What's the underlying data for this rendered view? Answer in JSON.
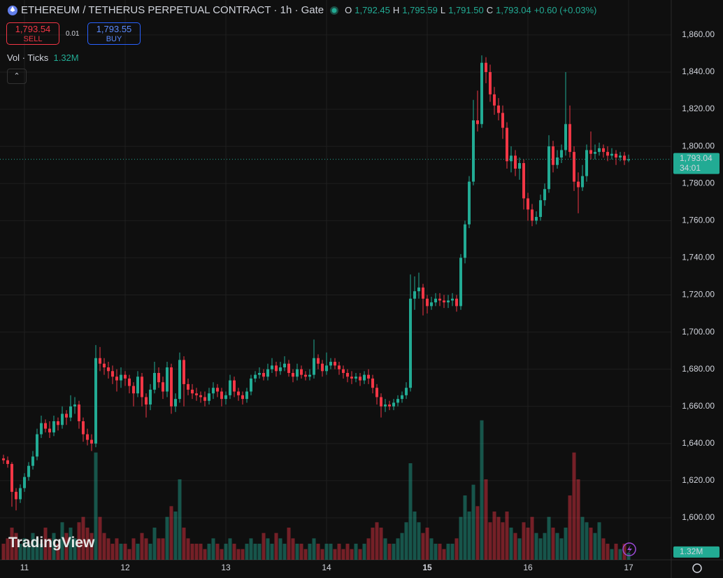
{
  "header": {
    "title": "ETHEREUM / TETHERUS PERPETUAL CONTRACT · 1h · Gate",
    "o_key": "O",
    "o_val": "1,792.45",
    "h_key": "H",
    "h_val": "1,795.59",
    "l_key": "L",
    "l_val": "1,791.50",
    "c_key": "C",
    "c_val": "1,793.04",
    "change": "+0.60 (+0.03%)",
    "sell_price": "1,793.54",
    "sell": "SELL",
    "spread": "0.01",
    "buy_price": "1,793.55",
    "buy": "BUY",
    "vol_title": "Vol · Ticks",
    "vol_value": "1.32M",
    "watermark": "TradingView"
  },
  "chart_data": {
    "type": "candlestick",
    "categories": [
      null,
      null,
      null,
      null,
      null,
      "11",
      null,
      null,
      null,
      null,
      null,
      null,
      null,
      null,
      null,
      null,
      null,
      null,
      null,
      null,
      null,
      null,
      null,
      null,
      null,
      null,
      null,
      null,
      null,
      "12",
      null,
      null,
      null,
      null,
      null,
      null,
      null,
      null,
      null,
      null,
      null,
      null,
      null,
      null,
      null,
      null,
      null,
      null,
      null,
      null,
      null,
      null,
      null,
      "13",
      null,
      null,
      null,
      null,
      null,
      null,
      null,
      null,
      null,
      null,
      null,
      null,
      null,
      null,
      null,
      null,
      null,
      null,
      null,
      null,
      null,
      null,
      null,
      "14",
      null,
      null,
      null,
      null,
      null,
      null,
      null,
      null,
      null,
      null,
      null,
      null,
      null,
      null,
      null,
      null,
      null,
      null,
      null,
      null,
      null,
      null,
      null,
      "15",
      null,
      null,
      null,
      null,
      null,
      null,
      null,
      null,
      null,
      null,
      null,
      null,
      null,
      null,
      null,
      null,
      null,
      null,
      null,
      null,
      null,
      null,
      null,
      "16",
      null,
      null,
      null,
      null,
      null,
      null,
      null,
      null,
      null,
      null,
      null,
      null,
      null,
      null,
      null,
      null,
      null,
      null,
      null,
      null,
      null,
      null,
      null,
      "17"
    ],
    "open": [
      1632,
      1631,
      1629,
      1614,
      1610,
      1616,
      1622,
      1628,
      1633,
      1645,
      1651,
      1648,
      1646,
      1652,
      1650,
      1656,
      1654,
      1660,
      1661,
      1652,
      1645,
      1642,
      1640,
      1686,
      1683,
      1681,
      1679,
      1676,
      1674,
      1677,
      1675,
      1671,
      1667,
      1676,
      1665,
      1661,
      1669,
      1678,
      1673,
      1668,
      1681,
      1660,
      1664,
      1685,
      1672,
      1669,
      1667,
      1666,
      1665,
      1663,
      1667,
      1670,
      1668,
      1664,
      1666,
      1674,
      1668,
      1666,
      1664,
      1668,
      1675,
      1677,
      1678,
      1676,
      1680,
      1682,
      1679,
      1681,
      1683,
      1678,
      1676,
      1680,
      1677,
      1676,
      1677,
      1686,
      1683,
      1679,
      1682,
      1684,
      1682,
      1680,
      1678,
      1676,
      1675,
      1676,
      1674,
      1677,
      1675,
      1670,
      1665,
      1660,
      1661,
      1660,
      1662,
      1664,
      1666,
      1670,
      1718,
      1722,
      1724,
      1718,
      1714,
      1716,
      1718,
      1717,
      1716,
      1717,
      1718,
      1714,
      1740,
      1758,
      1781,
      1814,
      1812,
      1845,
      1840,
      1828,
      1822,
      1818,
      1810,
      1792,
      1795,
      1788,
      1791,
      1772,
      1766,
      1760,
      1762,
      1771,
      1777,
      1800,
      1790,
      1794,
      1798,
      1812,
      1797,
      1781,
      1778,
      1784,
      1798,
      1796,
      1797,
      1799,
      1797,
      1795,
      1796,
      1794,
      1795,
      1792.45
    ],
    "high": [
      1634,
      1633,
      1630,
      1616,
      1618,
      1624,
      1630,
      1636,
      1648,
      1655,
      1653,
      1652,
      1655,
      1654,
      1660,
      1658,
      1666,
      1665,
      1663,
      1654,
      1648,
      1645,
      1693,
      1692,
      1686,
      1684,
      1682,
      1680,
      1681,
      1679,
      1677,
      1673,
      1679,
      1678,
      1667,
      1672,
      1684,
      1681,
      1676,
      1684,
      1683,
      1667,
      1689,
      1687,
      1675,
      1672,
      1670,
      1668,
      1668,
      1670,
      1673,
      1672,
      1670,
      1668,
      1677,
      1676,
      1670,
      1668,
      1670,
      1677,
      1679,
      1681,
      1680,
      1683,
      1686,
      1684,
      1684,
      1687,
      1685,
      1680,
      1683,
      1682,
      1679,
      1680,
      1696,
      1688,
      1685,
      1689,
      1686,
      1686,
      1684,
      1682,
      1680,
      1679,
      1678,
      1678,
      1679,
      1680,
      1677,
      1672,
      1667,
      1664,
      1663,
      1664,
      1666,
      1668,
      1673,
      1731,
      1730,
      1732,
      1726,
      1720,
      1719,
      1721,
      1721,
      1720,
      1720,
      1721,
      1720,
      1742,
      1760,
      1784,
      1825,
      1830,
      1849,
      1848,
      1844,
      1832,
      1826,
      1822,
      1813,
      1800,
      1798,
      1794,
      1793,
      1775,
      1769,
      1765,
      1774,
      1780,
      1806,
      1803,
      1798,
      1801,
      1840,
      1822,
      1800,
      1786,
      1790,
      1801,
      1808,
      1801,
      1802,
      1801,
      1800,
      1799,
      1798,
      1797,
      1797,
      1795.59
    ],
    "low": [
      1629,
      1627,
      1606,
      1604,
      1608,
      1614,
      1620,
      1626,
      1631,
      1643,
      1646,
      1643,
      1644,
      1647,
      1648,
      1650,
      1652,
      1656,
      1648,
      1641,
      1639,
      1636,
      1638,
      1679,
      1677,
      1675,
      1672,
      1668,
      1670,
      1671,
      1667,
      1660,
      1665,
      1660,
      1654,
      1658,
      1667,
      1670,
      1664,
      1665,
      1656,
      1657,
      1662,
      1660,
      1666,
      1664,
      1663,
      1662,
      1660,
      1661,
      1664,
      1665,
      1660,
      1661,
      1664,
      1665,
      1663,
      1661,
      1662,
      1666,
      1673,
      1675,
      1674,
      1674,
      1678,
      1676,
      1677,
      1679,
      1676,
      1673,
      1674,
      1675,
      1674,
      1674,
      1675,
      1680,
      1676,
      1677,
      1680,
      1680,
      1677,
      1675,
      1673,
      1672,
      1673,
      1671,
      1672,
      1672,
      1667,
      1661,
      1654,
      1657,
      1658,
      1658,
      1660,
      1662,
      1664,
      1668,
      1712,
      1718,
      1709,
      1710,
      1712,
      1714,
      1714,
      1713,
      1713,
      1714,
      1711,
      1712,
      1737,
      1756,
      1779,
      1808,
      1810,
      1834,
      1824,
      1817,
      1814,
      1804,
      1788,
      1786,
      1784,
      1782,
      1766,
      1760,
      1757,
      1758,
      1760,
      1768,
      1775,
      1786,
      1788,
      1791,
      1795,
      1794,
      1776,
      1764,
      1776,
      1781,
      1793,
      1793,
      1795,
      1794,
      1792,
      1793,
      1790,
      1792,
      1790,
      1791.5
    ],
    "close": [
      1631,
      1629,
      1614,
      1610,
      1616,
      1622,
      1628,
      1633,
      1645,
      1651,
      1648,
      1646,
      1652,
      1650,
      1656,
      1654,
      1660,
      1661,
      1652,
      1645,
      1642,
      1640,
      1686,
      1683,
      1681,
      1679,
      1676,
      1674,
      1677,
      1675,
      1671,
      1667,
      1676,
      1665,
      1661,
      1669,
      1678,
      1673,
      1668,
      1681,
      1660,
      1664,
      1685,
      1672,
      1669,
      1667,
      1666,
      1665,
      1663,
      1667,
      1670,
      1668,
      1664,
      1666,
      1674,
      1668,
      1666,
      1664,
      1668,
      1675,
      1677,
      1678,
      1676,
      1680,
      1682,
      1679,
      1681,
      1683,
      1678,
      1676,
      1680,
      1677,
      1676,
      1677,
      1686,
      1683,
      1679,
      1682,
      1684,
      1682,
      1680,
      1678,
      1676,
      1675,
      1676,
      1674,
      1677,
      1675,
      1670,
      1665,
      1660,
      1661,
      1660,
      1662,
      1664,
      1666,
      1670,
      1718,
      1722,
      1724,
      1718,
      1714,
      1716,
      1718,
      1717,
      1716,
      1717,
      1718,
      1714,
      1740,
      1758,
      1781,
      1814,
      1812,
      1845,
      1840,
      1828,
      1822,
      1818,
      1810,
      1792,
      1795,
      1788,
      1791,
      1772,
      1766,
      1760,
      1762,
      1771,
      1777,
      1800,
      1790,
      1794,
      1798,
      1812,
      1797,
      1781,
      1778,
      1784,
      1798,
      1796,
      1797,
      1799,
      1797,
      1795,
      1796,
      1794,
      1795,
      1792.45,
      1793.04
    ],
    "volume": [
      3,
      4,
      6,
      5,
      3,
      4,
      3,
      5,
      4,
      3,
      6,
      4,
      5,
      3,
      7,
      5,
      6,
      4,
      7,
      8,
      6,
      5,
      20,
      8,
      5,
      4,
      3,
      4,
      3,
      3,
      2,
      4,
      3,
      5,
      4,
      3,
      6,
      4,
      4,
      8,
      10,
      9,
      15,
      6,
      4,
      3,
      3,
      3,
      2,
      3,
      4,
      3,
      2,
      3,
      4,
      3,
      2,
      2,
      3,
      4,
      3,
      3,
      5,
      4,
      3,
      5,
      4,
      3,
      6,
      4,
      3,
      3,
      2,
      3,
      4,
      3,
      2,
      3,
      3,
      2,
      3,
      2,
      3,
      2,
      3,
      2,
      3,
      4,
      6,
      7,
      6,
      4,
      3,
      3,
      4,
      5,
      7,
      18,
      9,
      7,
      5,
      6,
      4,
      3,
      3,
      2,
      3,
      3,
      4,
      8,
      12,
      9,
      14,
      10,
      26,
      15,
      7,
      9,
      8,
      7,
      9,
      6,
      5,
      4,
      7,
      6,
      8,
      5,
      4,
      5,
      8,
      6,
      5,
      4,
      6,
      12,
      20,
      15,
      8,
      7,
      6,
      5,
      7,
      4,
      3,
      2,
      3,
      2,
      3,
      1.32
    ],
    "up_color": "#22ab94",
    "down_color": "#f23645",
    "ylim": [
      1577.4,
      1878.8
    ],
    "yticks": [
      {
        "value": 1600,
        "label": "1,600.00"
      },
      {
        "value": 1620,
        "label": "1,620.00"
      },
      {
        "value": 1640,
        "label": "1,640.00"
      },
      {
        "value": 1660,
        "label": "1,660.00"
      },
      {
        "value": 1680,
        "label": "1,680.00"
      },
      {
        "value": 1700,
        "label": "1,700.00"
      },
      {
        "value": 1720,
        "label": "1,720.00"
      },
      {
        "value": 1740,
        "label": "1,740.00"
      },
      {
        "value": 1760,
        "label": "1,760.00"
      },
      {
        "value": 1780,
        "label": "1,780.00"
      },
      {
        "value": 1800,
        "label": "1,800.00"
      },
      {
        "value": 1820,
        "label": "1,820.00"
      },
      {
        "value": 1840,
        "label": "1,840.00"
      },
      {
        "value": 1860,
        "label": "1,860.00"
      }
    ],
    "vol_lim": [
      0,
      30
    ],
    "vol_ticks": [
      0
    ],
    "grid": true,
    "last_price": {
      "value": 1793.04,
      "label": "1,793.04"
    },
    "countdown": "34:01",
    "bold_category": "15"
  }
}
